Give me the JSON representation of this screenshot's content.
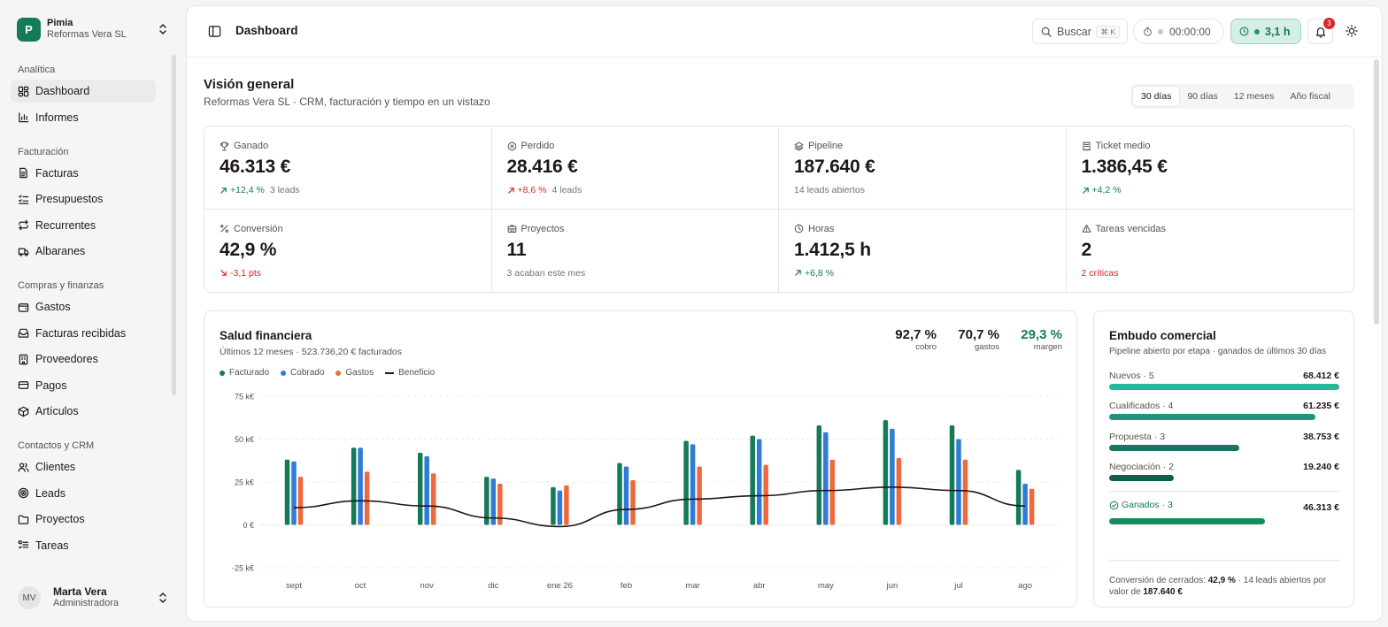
{
  "org": {
    "initial": "P",
    "name": "Pimia",
    "company": "Reformas Vera SL"
  },
  "nav": {
    "sections": [
      {
        "title": "Analítica",
        "items": [
          {
            "label": "Dashboard",
            "icon": "grid-icon",
            "active": true
          },
          {
            "label": "Informes",
            "icon": "bar-chart-icon"
          }
        ]
      },
      {
        "title": "Facturación",
        "items": [
          {
            "label": "Facturas",
            "icon": "file-text-icon"
          },
          {
            "label": "Presupuestos",
            "icon": "list-checks-icon"
          },
          {
            "label": "Recurrentes",
            "icon": "repeat-icon"
          },
          {
            "label": "Albaranes",
            "icon": "truck-icon"
          }
        ]
      },
      {
        "title": "Compras y finanzas",
        "items": [
          {
            "label": "Gastos",
            "icon": "wallet-icon"
          },
          {
            "label": "Facturas recibidas",
            "icon": "inbox-icon"
          },
          {
            "label": "Proveedores",
            "icon": "building-icon"
          },
          {
            "label": "Pagos",
            "icon": "credit-card-icon"
          },
          {
            "label": "Artículos",
            "icon": "package-icon"
          }
        ]
      },
      {
        "title": "Contactos y CRM",
        "items": [
          {
            "label": "Clientes",
            "icon": "users-icon"
          },
          {
            "label": "Leads",
            "icon": "target-icon"
          },
          {
            "label": "Proyectos",
            "icon": "folder-icon"
          },
          {
            "label": "Tareas",
            "icon": "list-todo-icon"
          }
        ]
      }
    ]
  },
  "user": {
    "initials": "MV",
    "name": "Marta Vera",
    "role": "Administradora"
  },
  "topbar": {
    "title": "Dashboard",
    "search_label": "Buscar",
    "search_kbd": "⌘ K",
    "timer": "00:00:00",
    "hours": "3,1 h",
    "notifications": "3"
  },
  "page": {
    "title": "Visión general",
    "subtitle": "Reformas Vera SL · CRM, facturación y tiempo en un vistazo",
    "ranges": [
      "30 días",
      "90 días",
      "12 meses",
      "Año fiscal"
    ],
    "active_range": 0
  },
  "kpis": [
    {
      "label": "Ganado",
      "icon": "trophy-icon",
      "value": "46.313 €",
      "change": "+12,4 %",
      "dir": "up",
      "note": "3 leads"
    },
    {
      "label": "Perdido",
      "icon": "x-circle-icon",
      "value": "28.416 €",
      "change": "+8,6 %",
      "dir": "up-bad",
      "note": "4 leads"
    },
    {
      "label": "Pipeline",
      "icon": "layers-icon",
      "value": "187.640 €",
      "change": "",
      "dir": "",
      "note": "14 leads abiertos"
    },
    {
      "label": "Ticket medio",
      "icon": "receipt-icon",
      "value": "1.386,45 €",
      "change": "+4,2 %",
      "dir": "up",
      "note": ""
    },
    {
      "label": "Conversión",
      "icon": "percent-icon",
      "value": "42,9 %",
      "change": "-3,1 pts",
      "dir": "down",
      "note": ""
    },
    {
      "label": "Proyectos",
      "icon": "briefcase-icon",
      "value": "11",
      "change": "",
      "dir": "",
      "note": "3 acaban este mes"
    },
    {
      "label": "Horas",
      "icon": "clock-icon",
      "value": "1.412,5 h",
      "change": "+6,8 %",
      "dir": "up",
      "note": ""
    },
    {
      "label": "Tareas vencidas",
      "icon": "alert-triangle-icon",
      "value": "2",
      "change": "",
      "dir": "",
      "note": "2 críticas",
      "note_alert": true
    }
  ],
  "finance": {
    "title": "Salud financiera",
    "subtitle": "Últimos 12 meses · 523.736,20 € facturados",
    "stats": [
      {
        "value": "92,7 %",
        "label": "cobro"
      },
      {
        "value": "70,7 %",
        "label": "gastos"
      },
      {
        "value": "29,3 %",
        "label": "margen",
        "accent": true
      }
    ]
  },
  "chart_data": {
    "type": "bar",
    "categories": [
      "sept",
      "oct",
      "nov",
      "dic",
      "ene 26",
      "feb",
      "mar",
      "abr",
      "may",
      "jun",
      "jul",
      "ago"
    ],
    "series": [
      {
        "name": "Facturado",
        "color": "#157a5a",
        "values": [
          38,
          45,
          42,
          28,
          22,
          36,
          49,
          52,
          58,
          61,
          58,
          32
        ]
      },
      {
        "name": "Cobrado",
        "color": "#2f7bd6",
        "values": [
          37,
          45,
          40,
          27,
          20,
          34,
          47,
          50,
          54,
          56,
          50,
          24
        ]
      },
      {
        "name": "Gastos",
        "color": "#f0693c",
        "values": [
          28,
          31,
          30,
          24,
          23,
          26,
          34,
          35,
          38,
          39,
          38,
          21
        ]
      },
      {
        "name": "Beneficio",
        "color": "#1c1917",
        "type": "line",
        "values": [
          10,
          14,
          11,
          4,
          -1,
          9,
          15,
          17,
          20,
          22,
          20,
          11
        ]
      }
    ],
    "yticks": [
      "75 k€",
      "50 k€",
      "25 k€",
      "0 €",
      "-25 k€"
    ],
    "ytick_values": [
      75,
      50,
      25,
      0,
      -25
    ],
    "ylim": [
      -25,
      75
    ],
    "grid": true,
    "legend": "top-left"
  },
  "funnel": {
    "title": "Embudo comercial",
    "subtitle": "Pipeline abierto por etapa · ganados de últimos 30 días",
    "stages": [
      {
        "label": "Nuevos · 5",
        "value": "68.412 €",
        "amount": 68412,
        "color": "#2ab699"
      },
      {
        "label": "Cualificados · 4",
        "value": "61.235 €",
        "amount": 61235,
        "color": "#20957d"
      },
      {
        "label": "Propuesta · 3",
        "value": "38.753 €",
        "amount": 38753,
        "color": "#197563"
      },
      {
        "label": "Negociación · 2",
        "value": "19.240 €",
        "amount": 19240,
        "color": "#125f50"
      }
    ],
    "won": {
      "label": "Ganados · 3",
      "value": "46.313 €",
      "amount": 46313,
      "color": "#1a8a5e"
    },
    "footer_prefix": "Conversión de cerrados: ",
    "footer_conv": "42,9 %",
    "footer_mid": " · 14 leads abiertos por valor de ",
    "footer_value": "187.640 €"
  }
}
